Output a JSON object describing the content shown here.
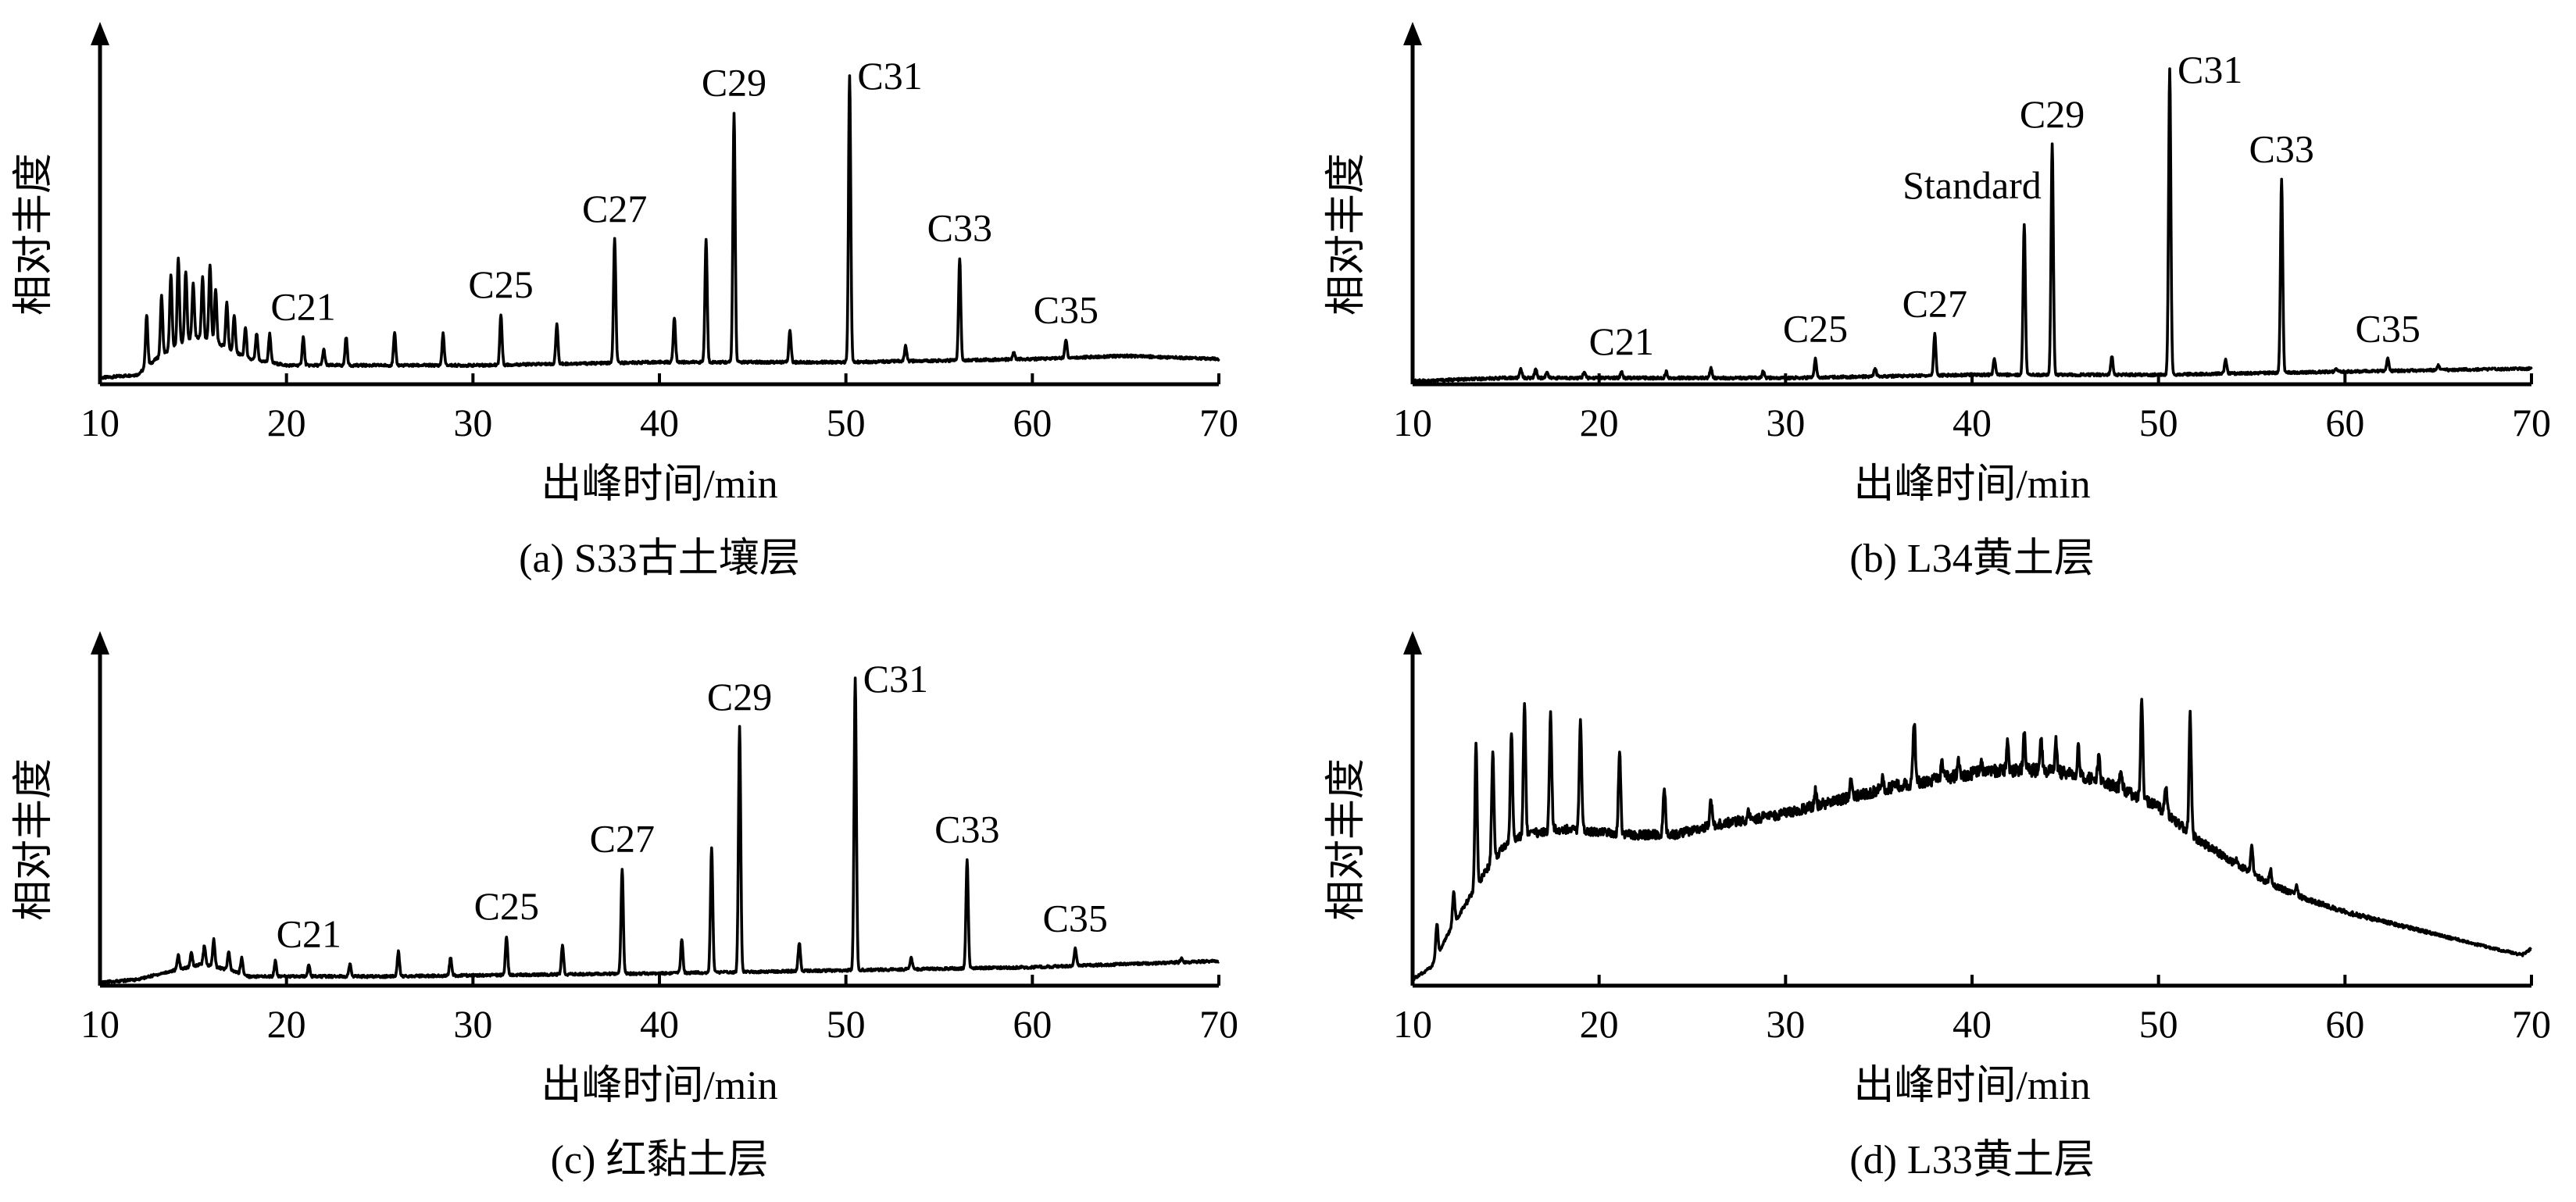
{
  "chart_data": [
    {
      "type": "line",
      "caption": "(a) S33古土壤层",
      "xlabel": "出峰时间/min",
      "ylabel": "相对丰度",
      "xlim": [
        10,
        70
      ],
      "ylim": [
        0,
        100
      ],
      "xticks": [
        10,
        20,
        30,
        40,
        50,
        60,
        70
      ],
      "baseline": [
        [
          10,
          2
        ],
        [
          12,
          3
        ],
        [
          13,
          8
        ],
        [
          14,
          12
        ],
        [
          15,
          15
        ],
        [
          16,
          14
        ],
        [
          17,
          11
        ],
        [
          18,
          8
        ],
        [
          20,
          6
        ],
        [
          25,
          6
        ],
        [
          30,
          6
        ],
        [
          40,
          7
        ],
        [
          50,
          7
        ],
        [
          60,
          8
        ],
        [
          65,
          9
        ],
        [
          70,
          8
        ]
      ],
      "peaks": [
        [
          12.5,
          22
        ],
        [
          13.3,
          28
        ],
        [
          13.8,
          35
        ],
        [
          14.2,
          40
        ],
        [
          14.6,
          36
        ],
        [
          15.0,
          32
        ],
        [
          15.5,
          34
        ],
        [
          15.9,
          38
        ],
        [
          16.2,
          30
        ],
        [
          16.8,
          26
        ],
        [
          17.2,
          22
        ],
        [
          17.8,
          18
        ],
        [
          18.4,
          16
        ],
        [
          19.1,
          16
        ],
        [
          20.9,
          15
        ],
        [
          22.0,
          11
        ],
        [
          23.2,
          15
        ],
        [
          25.8,
          16
        ],
        [
          28.4,
          16
        ],
        [
          31.5,
          22
        ],
        [
          34.5,
          19
        ],
        [
          37.6,
          46
        ],
        [
          40.8,
          21
        ],
        [
          42.5,
          46
        ],
        [
          44.0,
          86
        ],
        [
          47.0,
          17
        ],
        [
          50.2,
          98
        ],
        [
          53.2,
          12
        ],
        [
          56.1,
          40
        ],
        [
          59.0,
          10
        ],
        [
          61.8,
          14
        ]
      ],
      "labels": [
        {
          "text": "C21",
          "x": 20.9
        },
        {
          "text": "C25",
          "x": 31.5
        },
        {
          "text": "C27",
          "x": 37.6
        },
        {
          "text": "C29",
          "x": 44.0
        },
        {
          "text": "C31",
          "x": 50.2
        },
        {
          "text": "C33",
          "x": 56.1
        },
        {
          "text": "C35",
          "x": 61.8
        }
      ]
    },
    {
      "type": "line",
      "caption": "(b) L34黄土层",
      "xlabel": "出峰时间/min",
      "ylabel": "相对丰度",
      "xlim": [
        10,
        70
      ],
      "ylim": [
        0,
        100
      ],
      "xticks": [
        10,
        20,
        30,
        40,
        50,
        60,
        70
      ],
      "baseline": [
        [
          10,
          1
        ],
        [
          15,
          2
        ],
        [
          20,
          2
        ],
        [
          30,
          2
        ],
        [
          40,
          3
        ],
        [
          50,
          3
        ],
        [
          60,
          4
        ],
        [
          70,
          5
        ]
      ],
      "peaks": [
        [
          15.8,
          5
        ],
        [
          16.6,
          5
        ],
        [
          17.2,
          4
        ],
        [
          19.2,
          4
        ],
        [
          21.2,
          4
        ],
        [
          23.6,
          4
        ],
        [
          26.0,
          5
        ],
        [
          28.8,
          4
        ],
        [
          31.6,
          8
        ],
        [
          34.8,
          5
        ],
        [
          38.0,
          16
        ],
        [
          41.2,
          8
        ],
        [
          42.8,
          51
        ],
        [
          44.3,
          76
        ],
        [
          47.5,
          9
        ],
        [
          50.6,
          100
        ],
        [
          53.6,
          8
        ],
        [
          56.6,
          65
        ],
        [
          59.5,
          5
        ],
        [
          62.3,
          8
        ],
        [
          65.0,
          6
        ]
      ],
      "labels": [
        {
          "text": "C21",
          "x": 21.2
        },
        {
          "text": "C25",
          "x": 31.6
        },
        {
          "text": "C27",
          "x": 38.0
        },
        {
          "text": "Standard",
          "x": 42.8
        },
        {
          "text": "C29",
          "x": 44.3
        },
        {
          "text": "C31",
          "x": 50.6
        },
        {
          "text": "C33",
          "x": 56.6
        },
        {
          "text": "C35",
          "x": 62.3
        }
      ]
    },
    {
      "type": "line",
      "caption": "(c) 红黏土层",
      "xlabel": "出峰时间/min",
      "ylabel": "相对丰度",
      "xlim": [
        10,
        70
      ],
      "ylim": [
        0,
        100
      ],
      "xticks": [
        10,
        20,
        30,
        40,
        50,
        60,
        70
      ],
      "baseline": [
        [
          10,
          1
        ],
        [
          12,
          2
        ],
        [
          14,
          5
        ],
        [
          15.5,
          7
        ],
        [
          17,
          5
        ],
        [
          18,
          3
        ],
        [
          25,
          3
        ],
        [
          40,
          4
        ],
        [
          50,
          5
        ],
        [
          60,
          6
        ],
        [
          65,
          7
        ],
        [
          70,
          8
        ]
      ],
      "peaks": [
        [
          14.2,
          10
        ],
        [
          14.9,
          11
        ],
        [
          15.6,
          13
        ],
        [
          16.1,
          15
        ],
        [
          16.9,
          11
        ],
        [
          17.6,
          9
        ],
        [
          19.4,
          8
        ],
        [
          21.2,
          7
        ],
        [
          23.4,
          7
        ],
        [
          26.0,
          11
        ],
        [
          28.8,
          9
        ],
        [
          31.8,
          16
        ],
        [
          34.8,
          13
        ],
        [
          38.0,
          38
        ],
        [
          41.2,
          15
        ],
        [
          42.8,
          45
        ],
        [
          44.3,
          84
        ],
        [
          47.5,
          14
        ],
        [
          50.5,
          100
        ],
        [
          53.5,
          9
        ],
        [
          56.5,
          41
        ],
        [
          59.5,
          6
        ],
        [
          62.3,
          12
        ],
        [
          68.0,
          9
        ]
      ],
      "labels": [
        {
          "text": "C21",
          "x": 21.2
        },
        {
          "text": "C25",
          "x": 31.8
        },
        {
          "text": "C27",
          "x": 38.0
        },
        {
          "text": "C29",
          "x": 44.3
        },
        {
          "text": "C31",
          "x": 50.5
        },
        {
          "text": "C33",
          "x": 56.5
        },
        {
          "text": "C35",
          "x": 62.3
        }
      ]
    },
    {
      "type": "line",
      "caption": "(d) L33黄土层",
      "xlabel": "出峰时间/min",
      "ylabel": "相对丰度",
      "xlim": [
        10,
        70
      ],
      "ylim": [
        0,
        100
      ],
      "xticks": [
        10,
        20,
        30,
        40,
        50,
        60,
        70
      ],
      "baseline": [
        [
          10,
          2
        ],
        [
          11,
          6
        ],
        [
          12,
          18
        ],
        [
          13,
          28
        ],
        [
          14,
          38
        ],
        [
          15,
          46
        ],
        [
          16,
          49
        ],
        [
          18,
          51
        ],
        [
          20,
          50
        ],
        [
          22,
          49
        ],
        [
          24,
          49
        ],
        [
          26,
          52
        ],
        [
          28,
          54
        ],
        [
          30,
          56
        ],
        [
          32,
          59
        ],
        [
          34,
          62
        ],
        [
          36,
          65
        ],
        [
          38,
          67
        ],
        [
          40,
          69
        ],
        [
          42,
          70
        ],
        [
          44,
          70
        ],
        [
          46,
          68
        ],
        [
          48,
          64
        ],
        [
          50,
          58
        ],
        [
          52,
          48
        ],
        [
          54,
          40
        ],
        [
          56,
          33
        ],
        [
          58,
          28
        ],
        [
          60,
          24
        ],
        [
          62,
          21
        ],
        [
          64,
          18
        ],
        [
          66,
          15
        ],
        [
          68,
          12
        ],
        [
          69.5,
          10
        ],
        [
          70,
          12
        ]
      ],
      "peaks": [
        [
          11.3,
          20
        ],
        [
          12.2,
          30
        ],
        [
          13.4,
          78
        ],
        [
          14.3,
          76
        ],
        [
          15.3,
          82
        ],
        [
          16.0,
          92
        ],
        [
          17.4,
          88
        ],
        [
          19.0,
          86
        ],
        [
          21.1,
          76
        ],
        [
          23.5,
          64
        ],
        [
          26.0,
          60
        ],
        [
          28.0,
          56
        ],
        [
          31.6,
          64
        ],
        [
          33.5,
          66
        ],
        [
          35.2,
          68
        ],
        [
          36.9,
          86
        ],
        [
          38.4,
          72
        ],
        [
          39.3,
          73
        ],
        [
          40.5,
          72
        ],
        [
          41.9,
          80
        ],
        [
          42.8,
          82
        ],
        [
          43.7,
          81
        ],
        [
          44.5,
          79
        ],
        [
          45.7,
          77
        ],
        [
          46.8,
          74
        ],
        [
          48.0,
          70
        ],
        [
          49.1,
          92
        ],
        [
          50.4,
          64
        ],
        [
          51.7,
          88
        ],
        [
          54.2,
          41
        ],
        [
          55.0,
          46
        ],
        [
          56.0,
          38
        ],
        [
          57.4,
          32
        ]
      ],
      "labels": []
    }
  ]
}
